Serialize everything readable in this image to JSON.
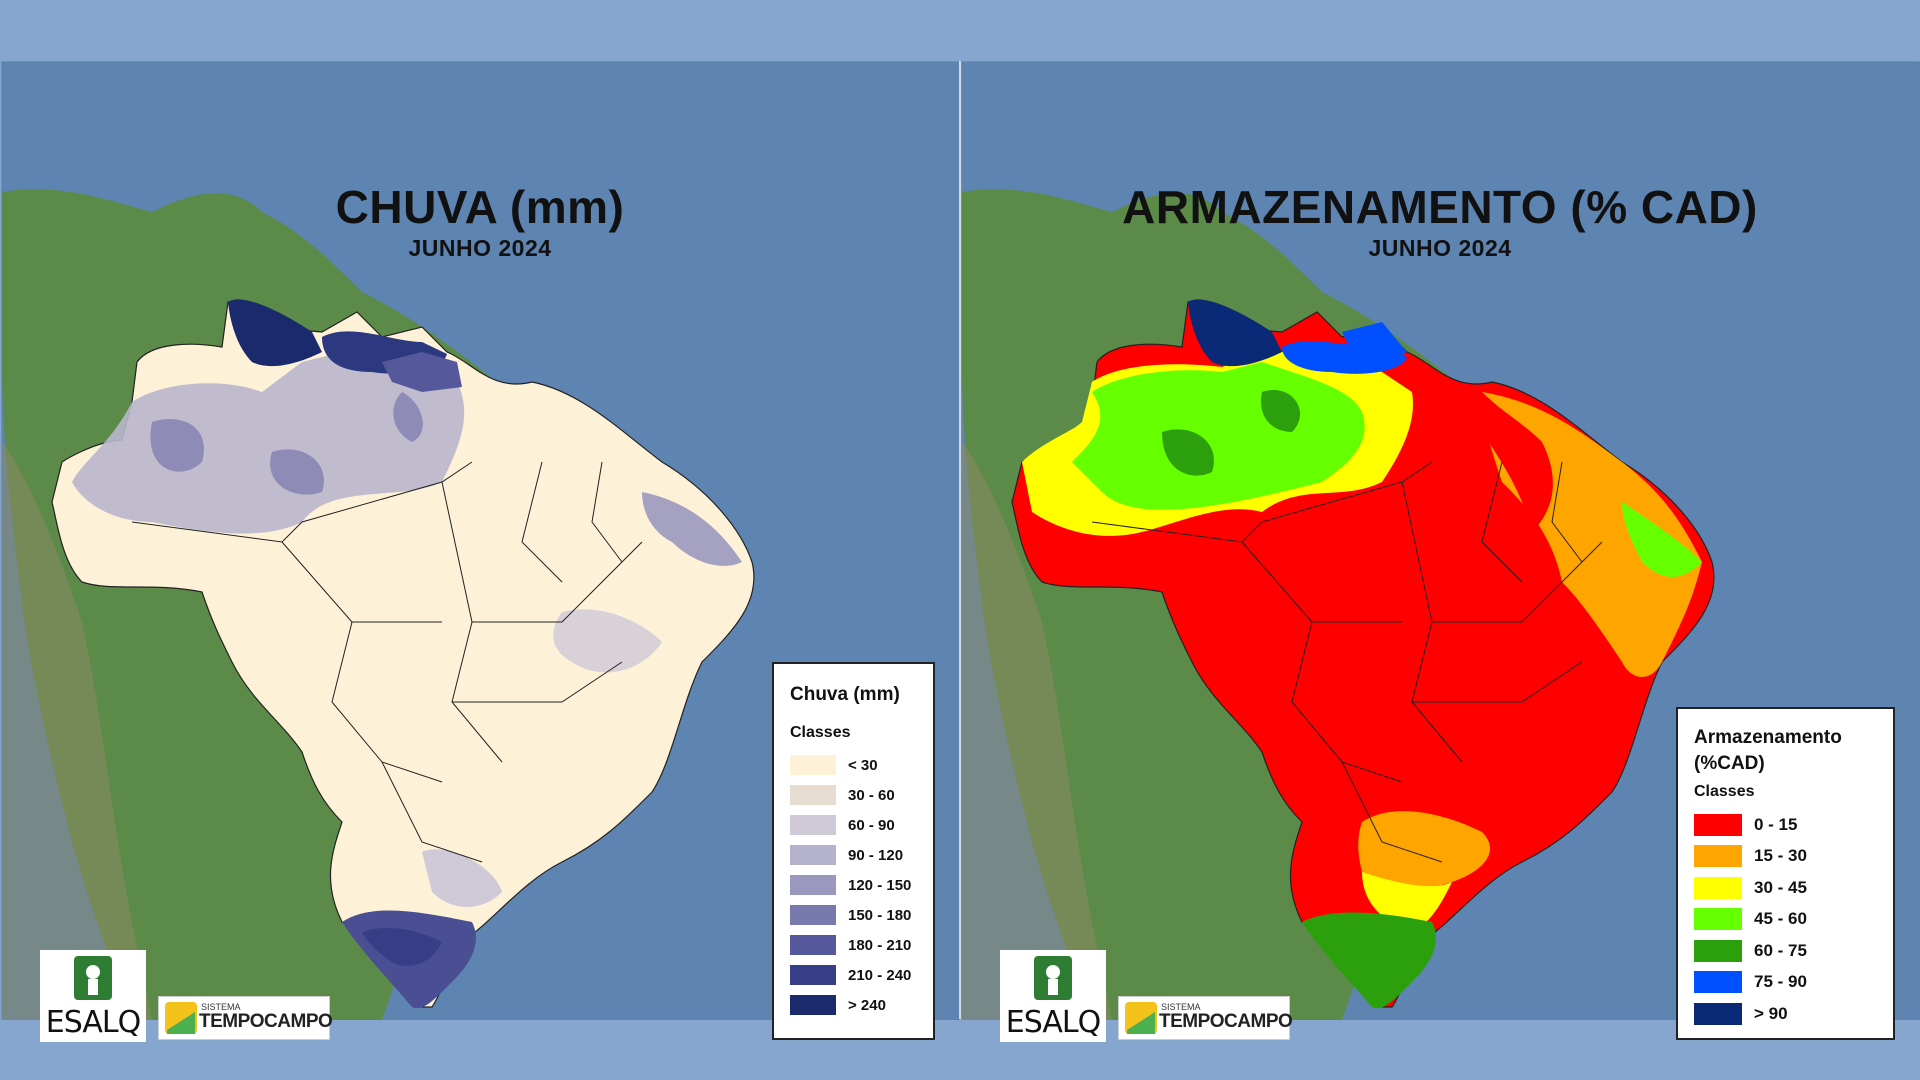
{
  "left_map": {
    "title": "CHUVA (mm)",
    "subtitle": "JUNHO 2024",
    "legend": {
      "title": "Chuva (mm)",
      "classes_label": "Classes",
      "items": [
        {
          "label": "< 30",
          "color": "#fdf2d8"
        },
        {
          "label": "30 - 60",
          "color": "#e6dcd2"
        },
        {
          "label": "60 - 90",
          "color": "#cfc9d8"
        },
        {
          "label": "90 - 120",
          "color": "#b4b2cc"
        },
        {
          "label": "120 - 150",
          "color": "#9a98bf"
        },
        {
          "label": "150 - 180",
          "color": "#7879ac"
        },
        {
          "label": "180 - 210",
          "color": "#55589a"
        },
        {
          "label": "210 - 240",
          "color": "#363e85"
        },
        {
          "label": "> 240",
          "color": "#1a2a6c"
        }
      ]
    }
  },
  "right_map": {
    "title": "ARMAZENAMENTO (% CAD)",
    "subtitle": "JUNHO 2024",
    "legend": {
      "title": "Armazenamento (%CAD)",
      "classes_label": "Classes",
      "items": [
        {
          "label": "0 - 15",
          "color": "#ff0000"
        },
        {
          "label": "15 - 30",
          "color": "#ffa500"
        },
        {
          "label": "30 - 45",
          "color": "#ffff00"
        },
        {
          "label": "45 - 60",
          "color": "#66ff00"
        },
        {
          "label": "60 - 75",
          "color": "#2ca00c"
        },
        {
          "label": "75 - 90",
          "color": "#0050ff"
        },
        {
          "label": "> 90",
          "color": "#0a2a78"
        }
      ]
    }
  },
  "logos": {
    "esalq": "ESALQ",
    "sistema": "SISTEMA",
    "tempocampo": "TEMPOCAMPO"
  }
}
